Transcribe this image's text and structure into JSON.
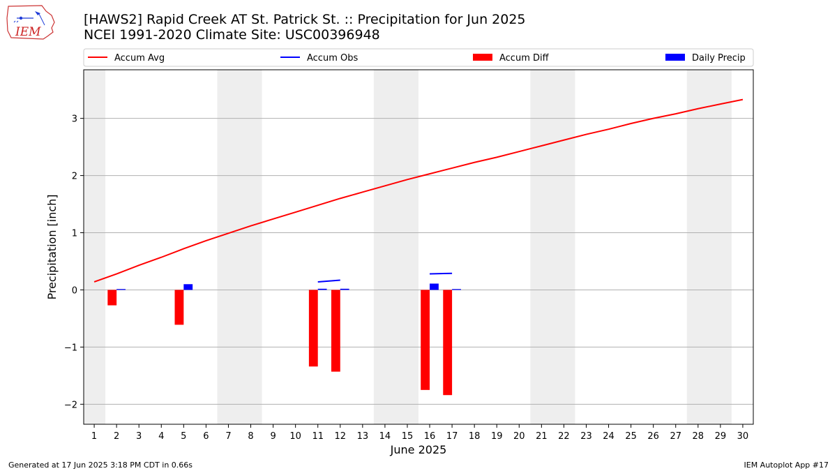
{
  "header": {
    "title_line1": "[HAWS2] Rapid Creek  AT St. Patrick St. :: Precipitation for Jun 2025",
    "title_line2": "NCEI 1991-2020 Climate Site: USC00396948",
    "logo_text": "IEM"
  },
  "footer": {
    "generated": "Generated at 17 Jun 2025 3:18 PM CDT in 0.66s",
    "app": "IEM Autoplot App #17"
  },
  "colors": {
    "avg": "#ff0000",
    "obs": "#0000ff",
    "diff": "#ff0000",
    "precip": "#0000ff",
    "weekend": "#eeeeee",
    "grid": "#b0b0b0"
  },
  "chart_data": {
    "type": "bar",
    "xlabel": "June 2025",
    "ylabel": "Precipitation [inch]",
    "ylim": [
      -2.35,
      3.85
    ],
    "yticks": [
      3,
      2,
      1,
      0,
      -1,
      -2
    ],
    "ytick_labels": [
      "3",
      "2",
      "1",
      "0",
      "−1",
      "−2"
    ],
    "grid": "horizontal",
    "legend_position": "top",
    "days": [
      1,
      2,
      3,
      4,
      5,
      6,
      7,
      8,
      9,
      10,
      11,
      12,
      13,
      14,
      15,
      16,
      17,
      18,
      19,
      20,
      21,
      22,
      23,
      24,
      25,
      26,
      27,
      28,
      29,
      30
    ],
    "weekend_spans": [
      [
        1,
        1
      ],
      [
        7,
        8
      ],
      [
        14,
        15
      ],
      [
        21,
        22
      ],
      [
        28,
        29
      ]
    ],
    "series": [
      {
        "name": "Accum Avg",
        "kind": "line",
        "color": "#ff0000",
        "x": [
          1,
          2,
          3,
          4,
          5,
          6,
          7,
          8,
          9,
          10,
          11,
          12,
          13,
          14,
          15,
          16,
          17,
          18,
          19,
          20,
          21,
          22,
          23,
          24,
          25,
          26,
          27,
          28,
          29,
          30
        ],
        "values": [
          0.14,
          0.28,
          0.43,
          0.57,
          0.72,
          0.86,
          0.99,
          1.12,
          1.24,
          1.36,
          1.48,
          1.6,
          1.71,
          1.82,
          1.93,
          2.03,
          2.13,
          2.23,
          2.32,
          2.42,
          2.52,
          2.62,
          2.72,
          2.81,
          2.91,
          3.0,
          3.08,
          3.17,
          3.25,
          3.33
        ]
      },
      {
        "name": "Accum Obs",
        "kind": "line",
        "color": "#0000ff",
        "x": [
          1,
          2,
          3,
          4,
          5,
          6,
          7,
          8,
          9,
          10,
          11,
          12,
          13,
          14,
          15,
          16,
          17
        ],
        "values": [
          null,
          null,
          null,
          null,
          null,
          null,
          null,
          null,
          null,
          null,
          0.14,
          0.17,
          null,
          null,
          null,
          0.28,
          0.29
        ]
      },
      {
        "name": "Accum Diff",
        "kind": "bar",
        "color": "#ff0000",
        "x": [
          2,
          5,
          11,
          12,
          16,
          17
        ],
        "values": [
          -0.27,
          -0.61,
          -1.34,
          -1.43,
          -1.75,
          -1.84
        ]
      },
      {
        "name": "Daily Precip",
        "kind": "bar",
        "color": "#0000ff",
        "x": [
          2,
          5,
          11,
          12,
          16,
          17
        ],
        "values": [
          0.01,
          0.1,
          0.02,
          0.02,
          0.11,
          0.01
        ]
      }
    ]
  }
}
